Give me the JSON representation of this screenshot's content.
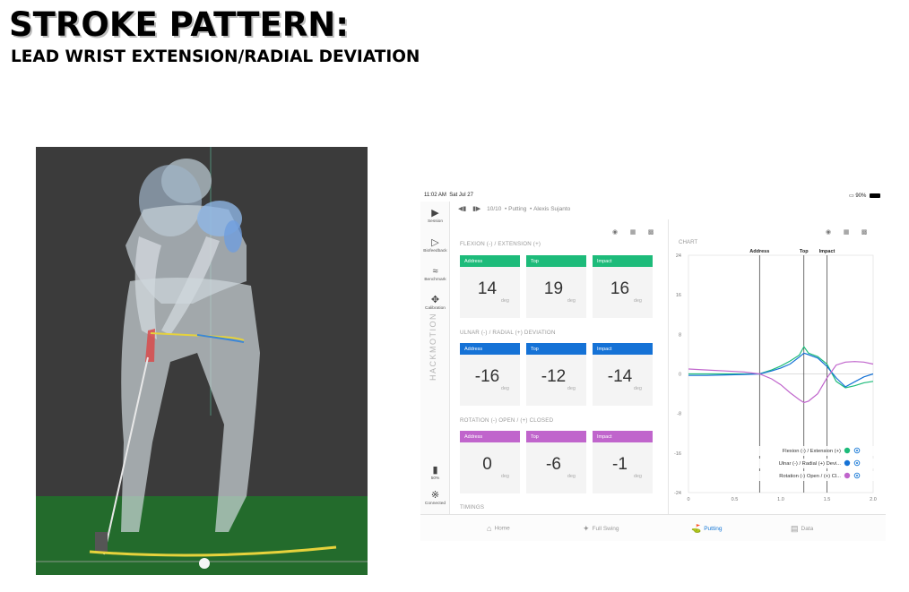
{
  "slide": {
    "title": "STROKE PATTERN:",
    "subtitle": "LEAD WRIST EXTENSION/RADIAL DEVIATION"
  },
  "colors": {
    "green": "#1dbb7a",
    "blue": "#1572d6",
    "purple": "#c065cc",
    "grass": "#226b2b"
  },
  "app": {
    "status": {
      "time": "11:02 AM",
      "date": "Sat Jul 27",
      "battery": "90%"
    },
    "header": {
      "prev_icon": "skip-back-icon",
      "next_icon": "skip-forward-icon",
      "progress": "10/10",
      "mode": "Putting",
      "player": "Alexis Sujanto"
    },
    "sidebar": [
      {
        "label": "Session",
        "icon": "play-circle-icon"
      },
      {
        "label": "Biofeedback",
        "icon": "speaker-icon"
      },
      {
        "label": "Benchmark",
        "icon": "benchmark-icon"
      },
      {
        "label": "Calibration",
        "icon": "move-icon"
      },
      {
        "label": "50%",
        "icon": "sensor-battery-icon"
      },
      {
        "label": "Connected",
        "icon": "bluetooth-icon"
      }
    ],
    "brand": "HACKMOTION",
    "sections": [
      {
        "label": "FLEXION (-) / EXTENSION (+)",
        "color": "#1dbb7a",
        "cards": [
          {
            "head": "Address",
            "value": "14",
            "unit": "deg"
          },
          {
            "head": "Top",
            "value": "19",
            "unit": "deg"
          },
          {
            "head": "Impact",
            "value": "16",
            "unit": "deg"
          }
        ]
      },
      {
        "label": "ULNAR (-) / RADIAL (+) DEVIATION",
        "color": "#1572d6",
        "cards": [
          {
            "head": "Address",
            "value": "-16",
            "unit": "deg"
          },
          {
            "head": "Top",
            "value": "-12",
            "unit": "deg"
          },
          {
            "head": "Impact",
            "value": "-14",
            "unit": "deg"
          }
        ]
      },
      {
        "label": "ROTATION (-) OPEN / (+) CLOSED",
        "color": "#c065cc",
        "cards": [
          {
            "head": "Address",
            "value": "0",
            "unit": "deg"
          },
          {
            "head": "Top",
            "value": "-6",
            "unit": "deg"
          },
          {
            "head": "Impact",
            "value": "-1",
            "unit": "deg"
          }
        ]
      },
      {
        "label": "TIMINGS"
      }
    ],
    "chart_label": "CHART",
    "tabs": [
      {
        "label": "Home",
        "icon": "home-icon"
      },
      {
        "label": "Full Swing",
        "icon": "golfer-icon"
      },
      {
        "label": "Putting",
        "icon": "putter-icon",
        "active": true
      },
      {
        "label": "Data",
        "icon": "data-icon"
      }
    ]
  },
  "chart_data": {
    "type": "line",
    "title": "CHART",
    "xlim": [
      0,
      2.0
    ],
    "ylim": [
      -24,
      24
    ],
    "xticks": [
      0,
      0.5,
      1.0,
      1.5,
      2.0
    ],
    "yticks": [
      24,
      16,
      8,
      0,
      -8,
      -16,
      -24
    ],
    "markers": [
      {
        "label": "Address",
        "x": 0.77
      },
      {
        "label": "Top",
        "x": 1.25
      },
      {
        "label": "Impact",
        "x": 1.5
      }
    ],
    "legend_position": "bottom-right",
    "series": [
      {
        "name": "Flexion (-) / Extension (+)",
        "color": "#1dbb7a",
        "x": [
          0,
          0.2,
          0.4,
          0.6,
          0.77,
          0.9,
          1.0,
          1.1,
          1.2,
          1.25,
          1.3,
          1.4,
          1.5,
          1.6,
          1.7,
          1.8,
          1.9,
          2.0
        ],
        "y": [
          0,
          0,
          0,
          0,
          0,
          0.8,
          1.6,
          2.6,
          3.8,
          5.5,
          4.2,
          3.5,
          2.0,
          -1.5,
          -2.8,
          -2.4,
          -1.8,
          -1.5
        ]
      },
      {
        "name": "Ulnar (-) / Radial (+) Devi...",
        "color": "#1572d6",
        "x": [
          0,
          0.2,
          0.4,
          0.6,
          0.77,
          0.9,
          1.0,
          1.1,
          1.2,
          1.25,
          1.3,
          1.4,
          1.5,
          1.6,
          1.7,
          1.8,
          1.9,
          2.0
        ],
        "y": [
          -0.3,
          -0.3,
          -0.2,
          -0.1,
          0,
          0.6,
          1.2,
          2.0,
          3.4,
          4.2,
          3.9,
          3.2,
          1.5,
          -0.8,
          -2.6,
          -1.6,
          -0.6,
          0
        ]
      },
      {
        "name": "Rotation (-) Open / (+) Cl...",
        "color": "#c065cc",
        "x": [
          0,
          0.2,
          0.4,
          0.6,
          0.77,
          0.9,
          1.0,
          1.1,
          1.2,
          1.25,
          1.3,
          1.4,
          1.5,
          1.6,
          1.7,
          1.8,
          1.9,
          2.0
        ],
        "y": [
          1.0,
          0.8,
          0.6,
          0.4,
          0,
          -1.0,
          -2.2,
          -3.8,
          -5.2,
          -5.8,
          -5.5,
          -4.0,
          -0.8,
          1.8,
          2.4,
          2.5,
          2.4,
          2.0
        ]
      }
    ]
  }
}
